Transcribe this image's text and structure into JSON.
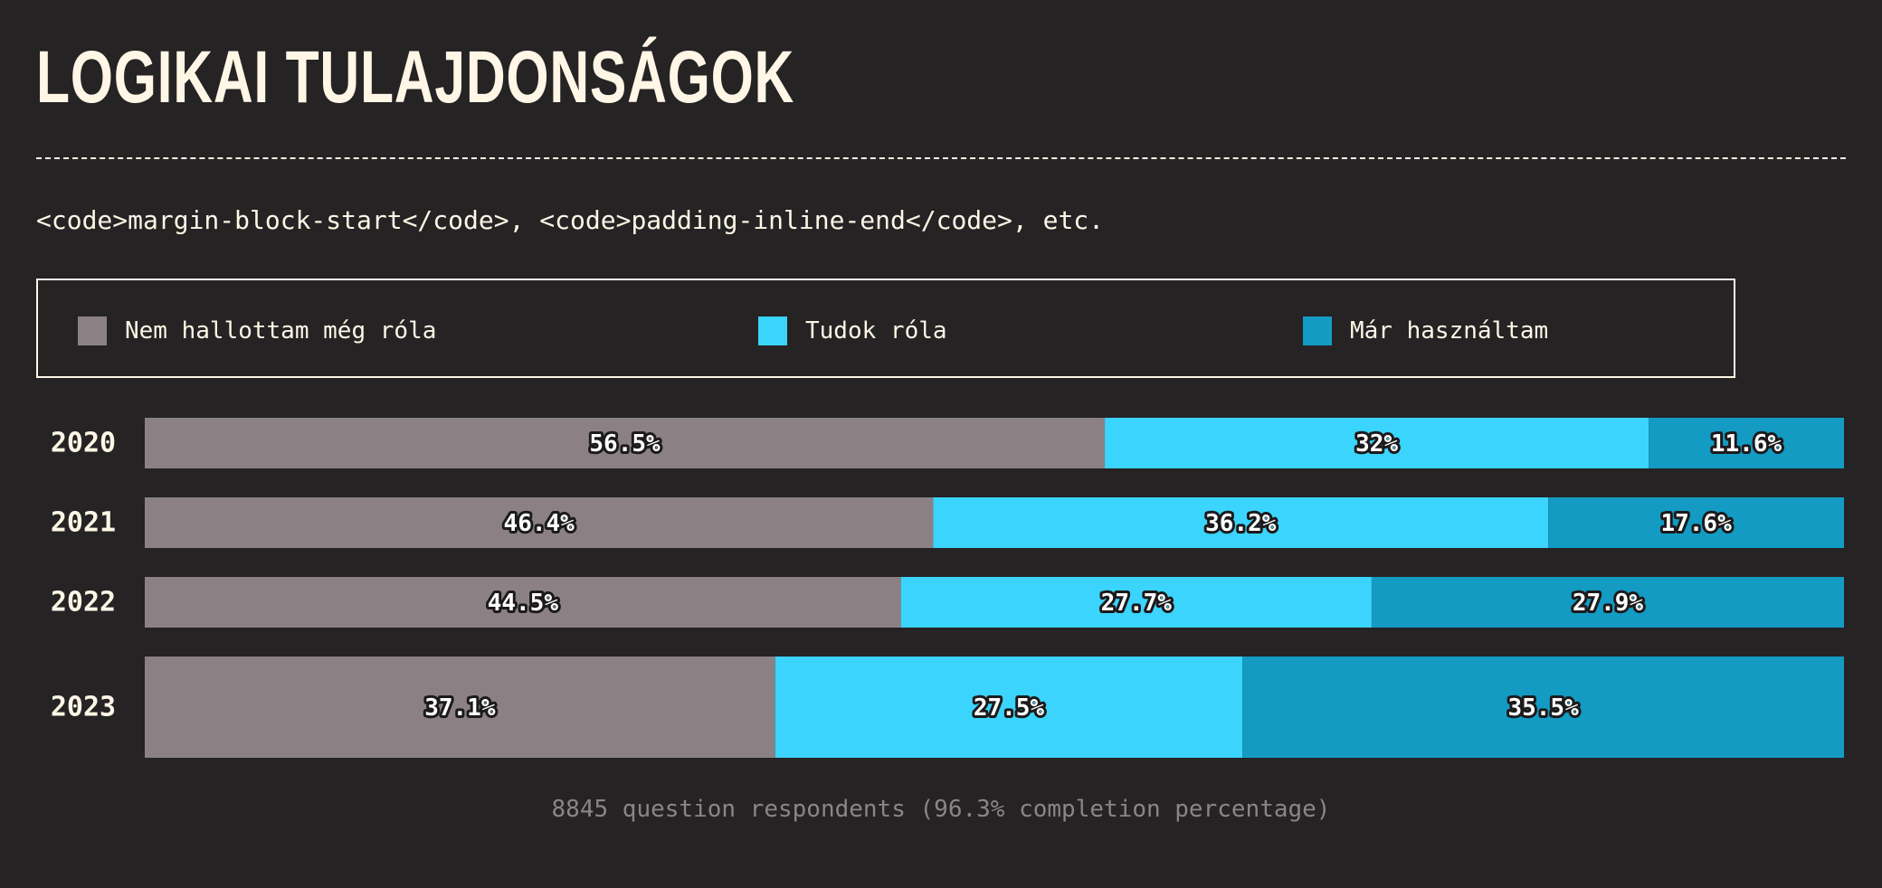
{
  "title": "LOGIKAI TULAJDONSÁGOK",
  "description": "<code>margin-block-start</code>, <code>padding-inline-end</code>, etc.",
  "legend": {
    "items": [
      {
        "label": "Nem hallottam még róla",
        "color": "#8b8185"
      },
      {
        "label": "Tudok róla",
        "color": "#3bd4fc"
      },
      {
        "label": "Már használtam",
        "color": "#139bc3"
      }
    ]
  },
  "chart_data": {
    "type": "bar",
    "orientation": "horizontal",
    "stacked": true,
    "categories": [
      "2020",
      "2021",
      "2022",
      "2023"
    ],
    "series": [
      {
        "name": "Nem hallottam még róla",
        "values": [
          56.5,
          46.4,
          44.5,
          37.1
        ],
        "labels": [
          "56.5%",
          "46.4%",
          "44.5%",
          "37.1%"
        ],
        "color": "#8b8185"
      },
      {
        "name": "Tudok róla",
        "values": [
          32,
          36.2,
          27.7,
          27.5
        ],
        "labels": [
          "32%",
          "36.2%",
          "27.7%",
          "27.5%"
        ],
        "color": "#3bd4fc"
      },
      {
        "name": "Már használtam",
        "values": [
          11.6,
          17.6,
          27.9,
          35.5
        ],
        "labels": [
          "11.6%",
          "17.6%",
          "27.9%",
          "35.5%"
        ],
        "color": "#139bc3"
      }
    ],
    "xlim": [
      0,
      100
    ]
  },
  "footer": "8845 question respondents (96.3% completion percentage)"
}
